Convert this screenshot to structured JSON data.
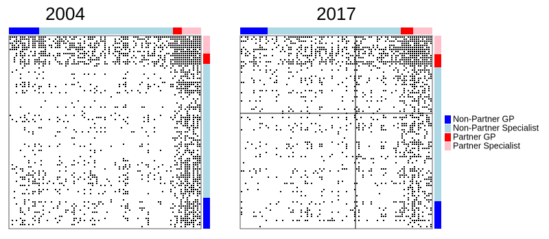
{
  "panels": [
    {
      "title": "2004"
    },
    {
      "title": "2017"
    }
  ],
  "legend": [
    {
      "label": "Non-Partner GP",
      "color": "#0000ff"
    },
    {
      "label": "Non-Partner Specialist",
      "color": "#add8e6"
    },
    {
      "label": "Partner GP",
      "color": "#ff0000"
    },
    {
      "label": "Partner Specialist",
      "color": "#ffc0cb"
    }
  ]
}
